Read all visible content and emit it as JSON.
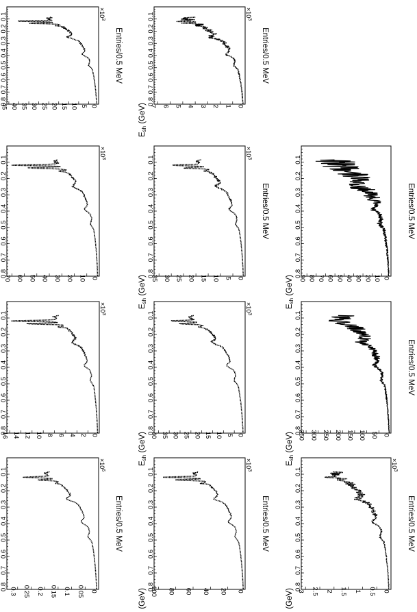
{
  "chart_data": [
    {
      "type": "line",
      "xlabel": "E_sh (GeV)",
      "ylabel": "Entries/0.5 MeV",
      "exponent": "×10^6",
      "xlim": [
        0,
        0.8
      ],
      "ylim": [
        0,
        0.34
      ],
      "xticks": [
        "0.1",
        "0.2",
        "0.3",
        "0.4",
        "0.5",
        "0.6",
        "0.7",
        "0.8"
      ],
      "yticks": [
        "0.05",
        "0.1",
        "0.15",
        "0.2",
        "0.25",
        "0.3"
      ],
      "ytick_values": [
        0.05,
        0.1,
        0.15,
        0.2,
        0.25,
        0.3
      ],
      "base": 0.2,
      "peaks": [
        0.45,
        0.45,
        0.32
      ],
      "bumps": [
        1.12,
        0.7,
        0.26
      ],
      "noise": 0.01
    },
    {
      "type": "line",
      "xlabel": "E_sh (GeV)",
      "ylabel": "",
      "exponent": "×10^3",
      "xlim": [
        0,
        0.8
      ],
      "ylim": [
        0,
        16.5
      ],
      "xticks": [
        "0.1",
        "0.2",
        "0.3",
        "0.4",
        "0.5",
        "0.6",
        "0.7",
        "0.8"
      ],
      "yticks": [
        "2",
        "4",
        "6",
        "8",
        "10",
        "12",
        "14",
        "16"
      ],
      "ytick_values": [
        2,
        4,
        6,
        8,
        10,
        12,
        14,
        16
      ],
      "base": 8.2,
      "peaks": [
        0.95,
        0.95,
        0.72
      ],
      "bumps": [
        1.14,
        0.88,
        0.3
      ],
      "noise": 0.02
    },
    {
      "type": "line",
      "xlabel": "E_sh (GeV)",
      "ylabel": "",
      "exponent": "×10^3",
      "xlim": [
        0,
        0.8
      ],
      "ylim": [
        0,
        74
      ],
      "xticks": [
        "0.1",
        "0.2",
        "0.3",
        "0.4",
        "0.5",
        "0.6",
        "0.7",
        "0.8"
      ],
      "yticks": [
        "10",
        "20",
        "30",
        "40",
        "50",
        "60",
        "70"
      ],
      "ytick_values": [
        10,
        20,
        30,
        40,
        50,
        60,
        70
      ],
      "base": 36,
      "peaks": [
        0.95,
        0.95,
        0.6
      ],
      "bumps": [
        1.1,
        0.8,
        0.28
      ],
      "noise": 0.02
    },
    {
      "type": "line",
      "xlabel": "E_sh (GeV)",
      "ylabel": "Entries/0.5 MeV",
      "exponent": "×10^3",
      "xlim": [
        0,
        0.8
      ],
      "ylim": [
        0,
        46
      ],
      "xticks": [
        "0.1",
        "0.2",
        "0.3",
        "0.4",
        "0.5",
        "0.6",
        "0.7",
        "0.8"
      ],
      "yticks": [
        "5",
        "10",
        "15",
        "20",
        "25",
        "30",
        "35",
        "40",
        "45"
      ],
      "ytick_values": [
        5,
        10,
        15,
        20,
        25,
        30,
        35,
        40,
        45
      ],
      "base": 26,
      "peaks": [
        0.7,
        0.7,
        0.5
      ],
      "bumps": [
        1.0,
        0.78,
        0.25
      ],
      "noise": 0.02
    },
    {
      "type": "line",
      "xlabel": "E_sh (GeV)",
      "ylabel": "Entries/0.5 MeV",
      "exponent": "×10^3",
      "xlim": [
        0,
        0.8
      ],
      "ylim": [
        0,
        105
      ],
      "xticks": [
        "0.1",
        "0.2",
        "0.3",
        "0.4",
        "0.5",
        "0.6",
        "0.7",
        "0.8"
      ],
      "yticks": [
        "20",
        "40",
        "60",
        "80",
        "100"
      ],
      "ytick_values": [
        20,
        40,
        60,
        80,
        100
      ],
      "base": 60,
      "peaks": [
        0.7,
        0.7,
        0.55
      ],
      "bumps": [
        1.0,
        0.72,
        0.24
      ],
      "noise": 0.015
    },
    {
      "type": "line",
      "xlabel": "E_sh (GeV)",
      "ylabel": "",
      "exponent": "×10^3",
      "xlim": [
        0,
        0.8
      ],
      "ylim": [
        0,
        42
      ],
      "xticks": [
        "0.1",
        "0.2",
        "0.3",
        "0.4",
        "0.5",
        "0.6",
        "0.7",
        "0.8"
      ],
      "yticks": [
        "5",
        "10",
        "15",
        "20",
        "25",
        "30",
        "35",
        "40"
      ],
      "ytick_values": [
        5,
        10,
        15,
        20,
        25,
        30,
        35,
        40
      ],
      "base": 26,
      "peaks": [
        0.55,
        0.55,
        0.38
      ],
      "bumps": [
        0.88,
        0.66,
        0.22
      ],
      "noise": 0.02
    },
    {
      "type": "line",
      "xlabel": "E_sh (GeV)",
      "ylabel": "Entries/0.5 MeV",
      "exponent": "×10^3",
      "xlim": [
        0,
        0.8
      ],
      "ylim": [
        0,
        37
      ],
      "xticks": [
        "0.1",
        "0.2",
        "0.3",
        "0.4",
        "0.5",
        "0.6",
        "0.7",
        "0.8"
      ],
      "yticks": [
        "5",
        "10",
        "15",
        "20",
        "25",
        "30",
        "35"
      ],
      "ytick_values": [
        5,
        10,
        15,
        20,
        25,
        30,
        35
      ],
      "base": 20,
      "peaks": [
        0.6,
        0.6,
        0.42
      ],
      "bumps": [
        1.0,
        0.74,
        0.24
      ],
      "noise": 0.025
    },
    {
      "type": "line",
      "xlabel": "E_sh (GeV)",
      "ylabel": "Entries/0.5 MeV",
      "exponent": "×10^3",
      "xlim": [
        0,
        0.8
      ],
      "ylim": [
        0,
        7.3
      ],
      "xticks": [
        "0.1",
        "0.2",
        "0.3",
        "0.4",
        "0.5",
        "0.6",
        "0.7",
        "0.8"
      ],
      "yticks": [
        "1",
        "2",
        "3",
        "4",
        "5",
        "6",
        "7"
      ],
      "ytick_values": [
        1,
        2,
        3,
        4,
        5,
        6,
        7
      ],
      "base": 4.8,
      "peaks": [
        0.4,
        0.35,
        0.28
      ],
      "bumps": [
        0.8,
        0.62,
        0.2
      ],
      "noise": 0.05
    },
    {
      "type": "line",
      "xlabel": "E_sh (GeV)",
      "ylabel": "Entries/0.5 MeV",
      "exponent": "×10^3",
      "xlim": [
        0,
        0.8
      ],
      "ylim": [
        0,
        3.15
      ],
      "xticks": [
        "0.1",
        "0.2",
        "0.3",
        "0.4",
        "0.5",
        "0.6",
        "0.7",
        "0.8"
      ],
      "yticks": [
        "0.5",
        "1",
        "1.5",
        "2",
        "2.5",
        "3"
      ],
      "ytick_values": [
        0.5,
        1,
        1.5,
        2,
        2.5,
        3
      ],
      "base": 2.0,
      "peaks": [
        0.38,
        0.3,
        0.22
      ],
      "bumps": [
        0.8,
        0.6,
        0.2
      ],
      "noise": 0.06
    },
    {
      "type": "line",
      "xlabel": "E_sh (GeV)",
      "ylabel": "Entries/0.5 MeV",
      "exponent": "",
      "xlim": [
        0,
        0.8
      ],
      "ylim": [
        0,
        370
      ],
      "xticks": [
        "0.1",
        "0.2",
        "0.3",
        "0.4",
        "0.5",
        "0.6",
        "0.7",
        "0.8"
      ],
      "yticks": [
        "50",
        "100",
        "150",
        "200",
        "250",
        "300",
        "350"
      ],
      "ytick_values": [
        50,
        100,
        150,
        200,
        250,
        300,
        350
      ],
      "base": 210,
      "peaks": [
        0.25,
        0.22,
        0.15
      ],
      "bumps": [
        0.55,
        0.45,
        0.15
      ],
      "noise": 0.12
    },
    {
      "type": "line",
      "xlabel": "E_sh (GeV)",
      "ylabel": "Entries/0.5 MeV",
      "exponent": "",
      "xlim": [
        0,
        0.8
      ],
      "ylim": [
        0,
        96
      ],
      "xticks": [
        "0.1",
        "0.2",
        "0.3",
        "0.4",
        "0.5",
        "0.6",
        "0.7",
        "0.8"
      ],
      "yticks": [
        "10",
        "20",
        "30",
        "40",
        "50",
        "60",
        "70",
        "80",
        "90"
      ],
      "ytick_values": [
        10,
        20,
        30,
        40,
        50,
        60,
        70,
        80,
        90
      ],
      "base": 62,
      "peaks": [
        0.2,
        0.18,
        0.12
      ],
      "bumps": [
        0.45,
        0.38,
        0.12
      ],
      "noise": 0.18
    }
  ]
}
